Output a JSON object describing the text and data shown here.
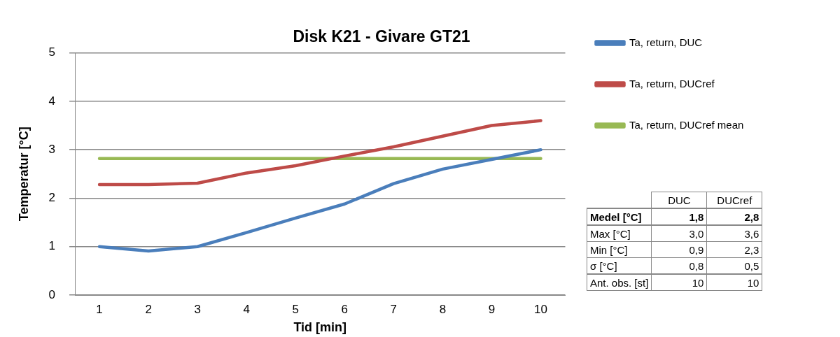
{
  "chart_data": {
    "type": "line",
    "title": "Disk K21 - Givare GT21",
    "xlabel": "Tid [min]",
    "ylabel": "Temperatur [°C]",
    "categories": [
      "1",
      "2",
      "3",
      "4",
      "5",
      "6",
      "7",
      "8",
      "9",
      "10"
    ],
    "series": [
      {
        "name": "Ta, return, DUC",
        "color": "#4a7ebb",
        "values": [
          1.0,
          0.91,
          1.0,
          1.29,
          1.59,
          1.88,
          2.3,
          2.6,
          2.8,
          3.0
        ]
      },
      {
        "name": "Ta, return, DUCref",
        "color": "#be4b48",
        "values": [
          2.28,
          2.28,
          2.31,
          2.52,
          2.67,
          2.87,
          3.06,
          3.28,
          3.5,
          3.6
        ]
      },
      {
        "name": "Ta, return, DUCref mean",
        "color": "#98b954",
        "values": [
          2.82,
          2.82,
          2.82,
          2.82,
          2.82,
          2.82,
          2.82,
          2.82,
          2.82,
          2.82
        ]
      }
    ],
    "ylim": [
      0,
      5
    ],
    "yticks": [
      0,
      1,
      2,
      3,
      4,
      5
    ],
    "grid": "y",
    "legend": "top right",
    "marker": "none",
    "line_style": "solid",
    "annotations": [
      "DUC",
      "DUCref",
      "Medel [°C]",
      "1,8",
      "2,8",
      "Max [°C]",
      "3,0",
      "3,6",
      "Min [°C]",
      "0,9",
      "2,3",
      "σ  [°C]",
      "0,8",
      "0,5",
      "Ant. obs. [st]",
      "10",
      "10"
    ]
  }
}
